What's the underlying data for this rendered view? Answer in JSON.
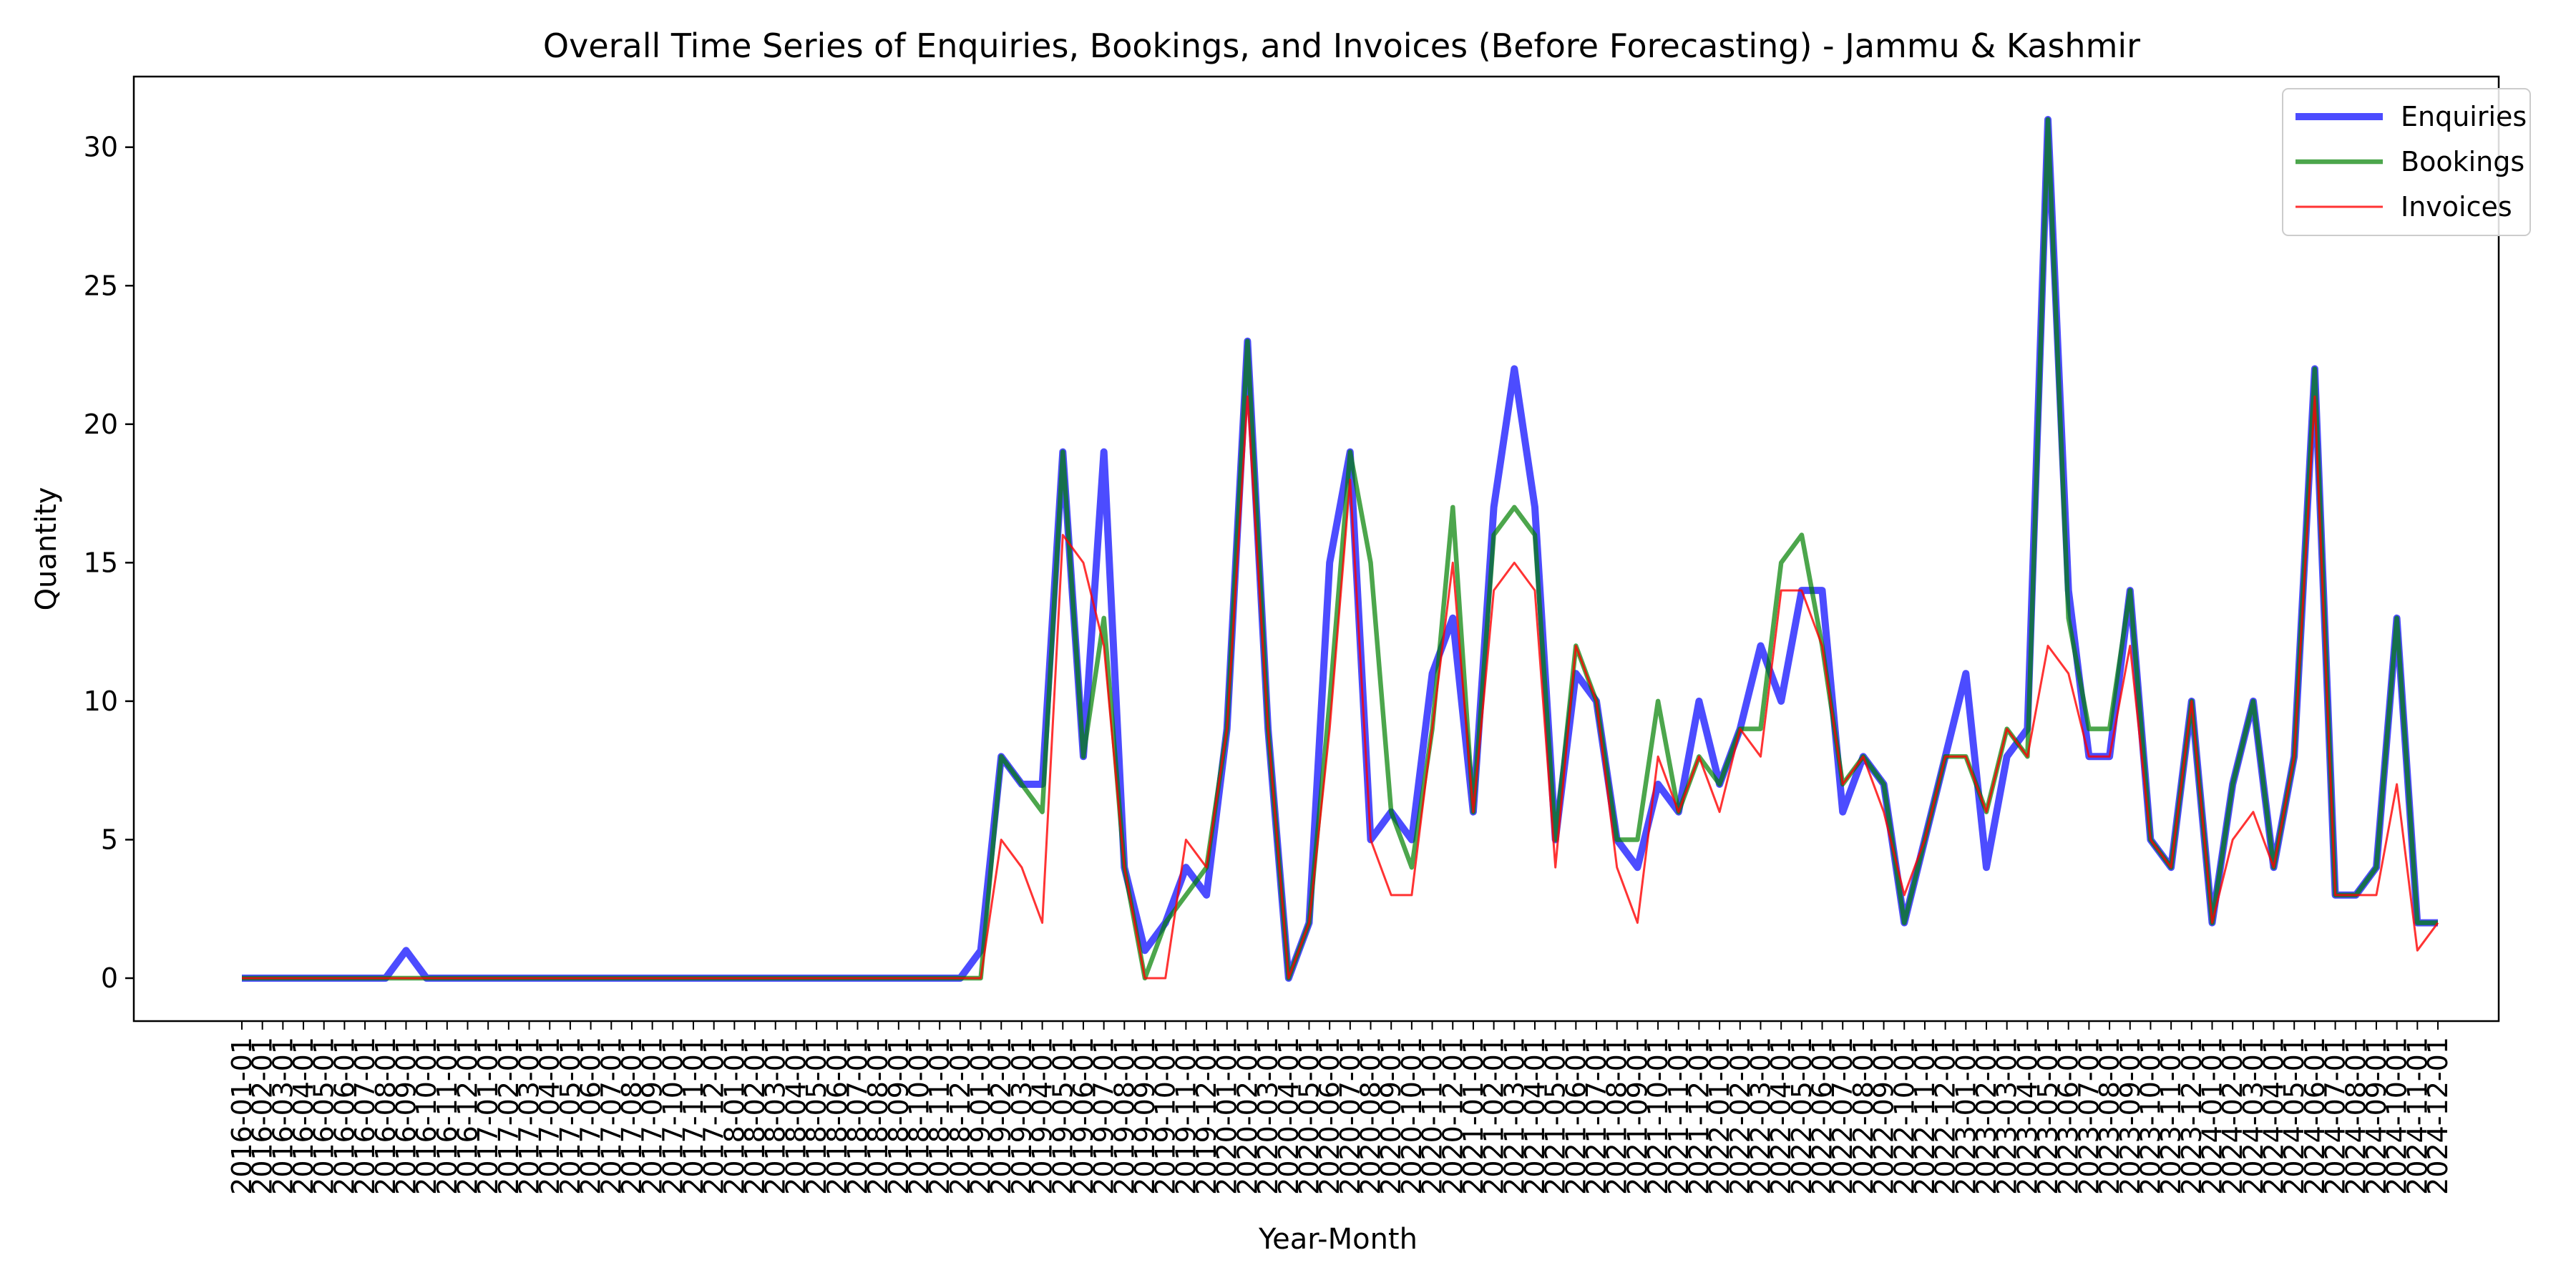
{
  "chart_data": {
    "type": "line",
    "title": "Overall Time Series of Enquiries, Bookings, and Invoices (Before Forecasting) - Jammu & Kashmir",
    "xlabel": "Year-Month",
    "ylabel": "Quantity",
    "ylim": [
      -1.55,
      32.55
    ],
    "yticks": [
      0,
      5,
      10,
      15,
      20,
      25,
      30
    ],
    "grid": false,
    "legend_position": "top-right",
    "x": [
      "2016-01-01",
      "2016-02-01",
      "2016-03-01",
      "2016-04-01",
      "2016-05-01",
      "2016-06-01",
      "2016-07-01",
      "2016-08-01",
      "2016-09-01",
      "2016-10-01",
      "2016-11-01",
      "2016-12-01",
      "2017-01-01",
      "2017-02-01",
      "2017-03-01",
      "2017-04-01",
      "2017-05-01",
      "2017-06-01",
      "2017-07-01",
      "2017-08-01",
      "2017-09-01",
      "2017-10-01",
      "2017-11-01",
      "2017-12-01",
      "2018-01-01",
      "2018-02-01",
      "2018-03-01",
      "2018-04-01",
      "2018-05-01",
      "2018-06-01",
      "2018-07-01",
      "2018-08-01",
      "2018-09-01",
      "2018-10-01",
      "2018-11-01",
      "2018-12-01",
      "2019-01-01",
      "2019-02-01",
      "2019-03-01",
      "2019-04-01",
      "2019-05-01",
      "2019-06-01",
      "2019-07-01",
      "2019-08-01",
      "2019-09-01",
      "2019-10-01",
      "2019-11-01",
      "2019-12-01",
      "2020-01-01",
      "2020-02-01",
      "2020-03-01",
      "2020-04-01",
      "2020-05-01",
      "2020-06-01",
      "2020-07-01",
      "2020-08-01",
      "2020-09-01",
      "2020-10-01",
      "2020-11-01",
      "2020-12-01",
      "2021-01-01",
      "2021-02-01",
      "2021-03-01",
      "2021-04-01",
      "2021-05-01",
      "2021-06-01",
      "2021-07-01",
      "2021-08-01",
      "2021-09-01",
      "2021-10-01",
      "2021-11-01",
      "2021-12-01",
      "2022-01-01",
      "2022-02-01",
      "2022-03-01",
      "2022-04-01",
      "2022-05-01",
      "2022-06-01",
      "2022-07-01",
      "2022-08-01",
      "2022-09-01",
      "2022-10-01",
      "2022-11-01",
      "2022-12-01",
      "2023-01-01",
      "2023-02-01",
      "2023-03-01",
      "2023-04-01",
      "2023-05-01",
      "2023-06-01",
      "2023-07-01",
      "2023-08-01",
      "2023-09-01",
      "2023-10-01",
      "2023-11-01",
      "2023-12-01",
      "2024-01-01",
      "2024-02-01",
      "2024-03-01",
      "2024-04-01",
      "2024-05-01",
      "2024-06-01",
      "2024-07-01",
      "2024-08-01",
      "2024-09-01",
      "2024-10-01",
      "2024-11-01",
      "2024-12-01"
    ],
    "series": [
      {
        "name": "Enquiries",
        "color": "#0000ff",
        "values": [
          0,
          0,
          0,
          0,
          0,
          0,
          0,
          0,
          1,
          0,
          0,
          0,
          0,
          0,
          0,
          0,
          0,
          0,
          0,
          0,
          0,
          0,
          0,
          0,
          0,
          0,
          0,
          0,
          0,
          0,
          0,
          0,
          0,
          0,
          0,
          0,
          1,
          8,
          7,
          7,
          19,
          8,
          19,
          4,
          1,
          2,
          4,
          3,
          9,
          23,
          9,
          0,
          2,
          15,
          19,
          5,
          6,
          5,
          11,
          13,
          6,
          17,
          22,
          17,
          5,
          11,
          10,
          5,
          4,
          7,
          6,
          10,
          7,
          9,
          12,
          10,
          14,
          14,
          6,
          8,
          7,
          2,
          5,
          8,
          11,
          4,
          8,
          9,
          31,
          14,
          8,
          8,
          14,
          5,
          4,
          10,
          2,
          7,
          10,
          4,
          8,
          22,
          3,
          3,
          4,
          13,
          2,
          2
        ]
      },
      {
        "name": "Bookings",
        "color": "#008000",
        "values": [
          0,
          0,
          0,
          0,
          0,
          0,
          0,
          0,
          0,
          0,
          0,
          0,
          0,
          0,
          0,
          0,
          0,
          0,
          0,
          0,
          0,
          0,
          0,
          0,
          0,
          0,
          0,
          0,
          0,
          0,
          0,
          0,
          0,
          0,
          0,
          0,
          0,
          8,
          7,
          6,
          19,
          8,
          13,
          4,
          0,
          2,
          3,
          4,
          9,
          23,
          9,
          0,
          2,
          10,
          19,
          15,
          6,
          4,
          9,
          17,
          6,
          16,
          17,
          16,
          5,
          12,
          10,
          5,
          5,
          10,
          6,
          8,
          7,
          9,
          9,
          15,
          16,
          12,
          7,
          8,
          7,
          2,
          5,
          8,
          8,
          6,
          9,
          8,
          31,
          13,
          9,
          9,
          14,
          5,
          4,
          10,
          2,
          7,
          10,
          4,
          8,
          22,
          3,
          3,
          4,
          13,
          2,
          2
        ]
      },
      {
        "name": "Invoices",
        "color": "#ff0000",
        "values": [
          0,
          0,
          0,
          0,
          0,
          0,
          0,
          0,
          0,
          0,
          0,
          0,
          0,
          0,
          0,
          0,
          0,
          0,
          0,
          0,
          0,
          0,
          0,
          0,
          0,
          0,
          0,
          0,
          0,
          0,
          0,
          0,
          0,
          0,
          0,
          0,
          0,
          5,
          4,
          2,
          16,
          15,
          12,
          4,
          0,
          0,
          5,
          4,
          9,
          21,
          9,
          0,
          2,
          9,
          18,
          5,
          3,
          3,
          9,
          15,
          6,
          14,
          15,
          14,
          4,
          12,
          10,
          4,
          2,
          8,
          6,
          8,
          6,
          9,
          8,
          14,
          14,
          12,
          7,
          8,
          6,
          3,
          5,
          8,
          8,
          6,
          9,
          8,
          12,
          11,
          8,
          8,
          12,
          5,
          4,
          10,
          2,
          5,
          6,
          4,
          8,
          21,
          3,
          3,
          3,
          7,
          1,
          2
        ]
      }
    ]
  }
}
